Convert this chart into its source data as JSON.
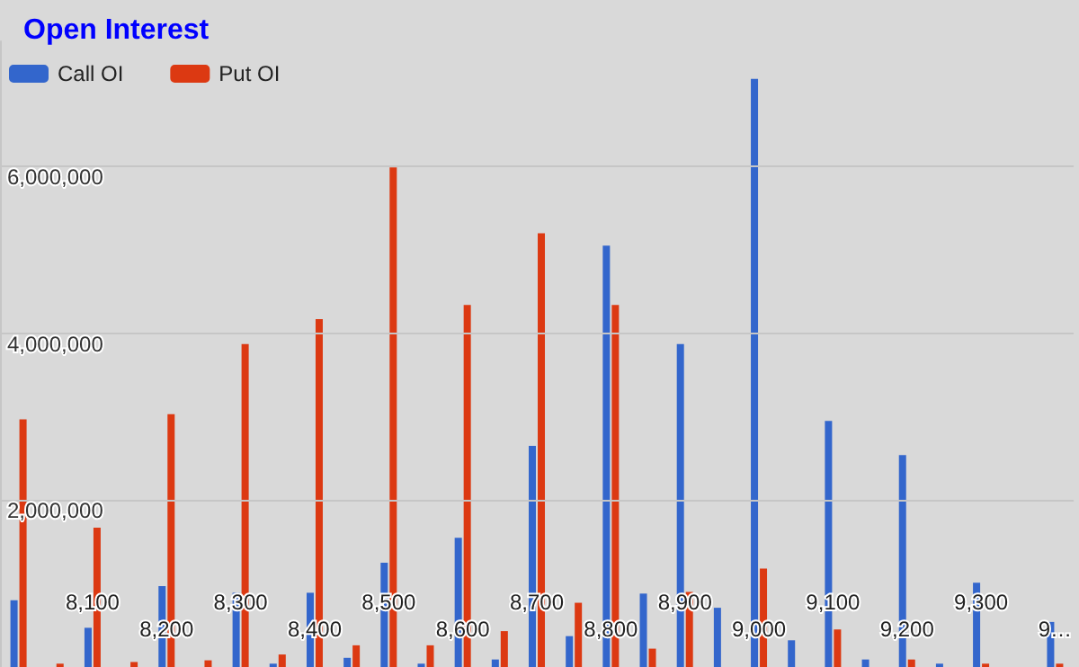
{
  "chart_data": {
    "type": "bar",
    "title": "Open Interest",
    "categories": [
      null,
      null,
      "8,100",
      null,
      "8,200",
      null,
      "8,300",
      null,
      "8,400",
      null,
      "8,500",
      null,
      "8,600",
      null,
      "8,700",
      null,
      "8,800",
      null,
      "8,900",
      null,
      "9,000",
      null,
      "9,100",
      null,
      "9,200",
      null,
      "9,300",
      null,
      "9…"
    ],
    "series": [
      {
        "name": "Call OI",
        "color": "#3366cc",
        "values": [
          800000,
          0,
          470000,
          0,
          970000,
          0,
          890000,
          40000,
          890000,
          110000,
          1250000,
          40000,
          1550000,
          90000,
          2650000,
          370000,
          5050000,
          880000,
          3870000,
          710000,
          7050000,
          320000,
          2950000,
          90000,
          2540000,
          40000,
          1010000,
          0,
          540000
        ]
      },
      {
        "name": "Put OI",
        "color": "#dc3912",
        "values": [
          2970000,
          40000,
          1670000,
          60000,
          3030000,
          80000,
          3870000,
          150000,
          4170000,
          260000,
          5990000,
          260000,
          4340000,
          430000,
          5200000,
          770000,
          4340000,
          220000,
          900000,
          0,
          1180000,
          0,
          450000,
          0,
          90000,
          0,
          40000,
          0,
          40000
        ]
      }
    ],
    "ylim": [
      0,
      7500000
    ],
    "yticks": [
      {
        "value": 2000000,
        "label": "2,000,000"
      },
      {
        "value": 4000000,
        "label": "4,000,000"
      },
      {
        "value": 6000000,
        "label": "6,000,000"
      }
    ],
    "grid": "y",
    "legend": "top left"
  }
}
